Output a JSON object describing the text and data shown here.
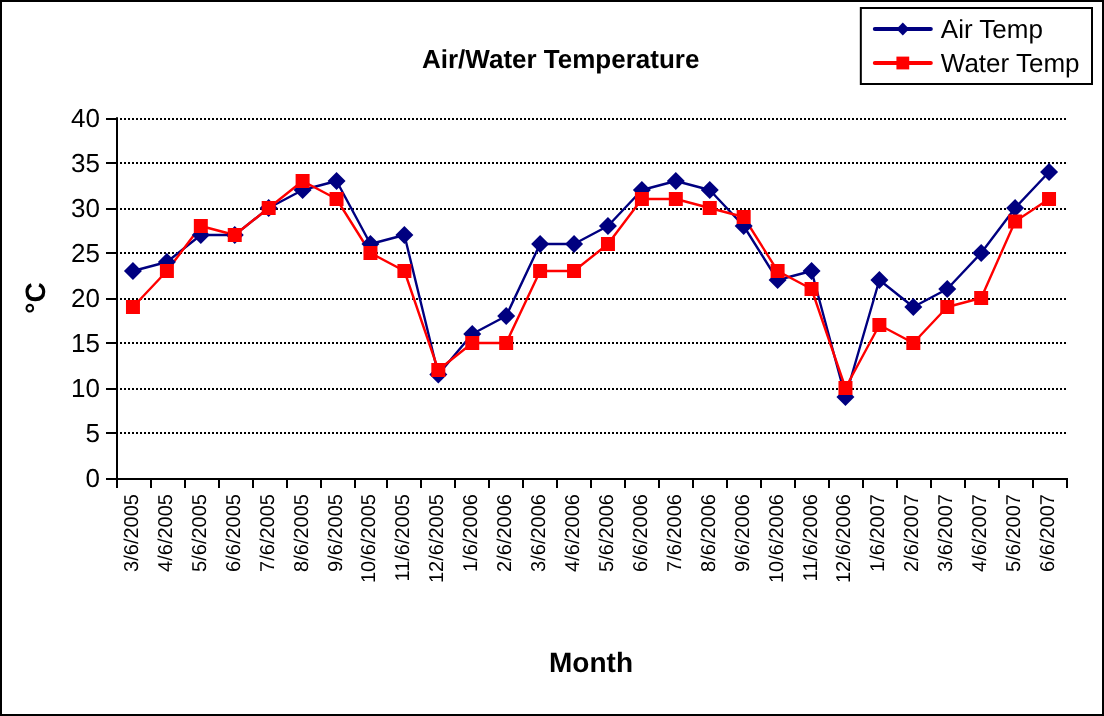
{
  "chart_data": {
    "type": "line",
    "title": "Air/Water Temperature",
    "xlabel": "Month",
    "ylabel": "°C",
    "categories": [
      "3/6/2005",
      "4/6/2005",
      "5/6/2005",
      "6/6/2005",
      "7/6/2005",
      "8/6/2005",
      "9/6/2005",
      "10/6/2005",
      "11/6/2005",
      "12/6/2005",
      "1/6/2006",
      "2/6/2006",
      "3/6/2006",
      "4/6/2006",
      "5/6/2006",
      "6/6/2006",
      "7/6/2006",
      "8/6/2006",
      "9/6/2006",
      "10/6/2006",
      "11/6/2006",
      "12/6/2006",
      "1/6/2007",
      "2/6/2007",
      "3/6/2007",
      "4/6/2007",
      "5/6/2007",
      "6/6/2007"
    ],
    "series": [
      {
        "name": "Air Temp",
        "color": "#000080",
        "marker": "diamond",
        "values": [
          23,
          24,
          27,
          27,
          30,
          32,
          33,
          26,
          27,
          11.5,
          16,
          18,
          26,
          26,
          28,
          32,
          33,
          32,
          28,
          22,
          23,
          9,
          22,
          19,
          21,
          25,
          30,
          34
        ]
      },
      {
        "name": "Water Temp",
        "color": "#ff0000",
        "marker": "square",
        "values": [
          19,
          23,
          28,
          27,
          30,
          33,
          31,
          25,
          23,
          12,
          15,
          15,
          23,
          23,
          26,
          31,
          31,
          30,
          29,
          23,
          21,
          10,
          17,
          15,
          19,
          20,
          28.5,
          31
        ]
      }
    ],
    "ylim": [
      0,
      40
    ],
    "yticks": [
      0,
      5,
      10,
      15,
      20,
      25,
      30,
      35,
      40
    ],
    "grid": "y",
    "legend": "top right",
    "line_style": "solid"
  }
}
